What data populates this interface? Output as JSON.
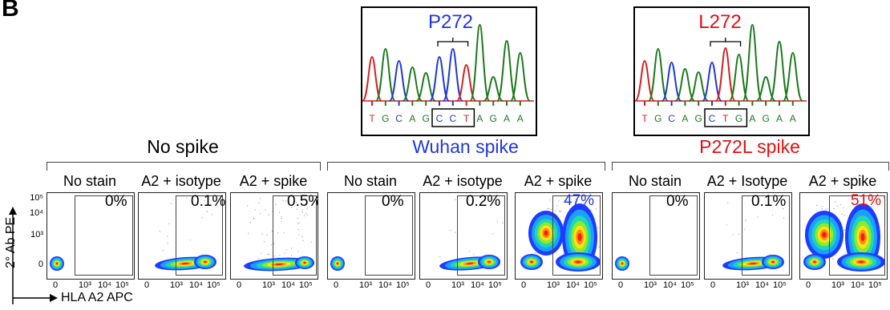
{
  "panel_letter": "B",
  "chromatograms": [
    {
      "label": "P272",
      "label_color": "#2036e0",
      "bases": [
        "T",
        "G",
        "C",
        "A",
        "G",
        "C",
        "C",
        "T",
        "A",
        "G",
        "A",
        "A"
      ]
    },
    {
      "label": "L272",
      "label_color": "#e01010",
      "bases": [
        "T",
        "G",
        "C",
        "A",
        "G",
        "C",
        "T",
        "G",
        "A",
        "G",
        "A",
        "A"
      ]
    }
  ],
  "base_colors": {
    "T": "#d42020",
    "G": "#1d7a1d",
    "C": "#2038d8",
    "A": "#1d7a1d"
  },
  "groups": [
    {
      "title": "No spike",
      "color": "#000000"
    },
    {
      "title": "Wuhan spike",
      "color": "#2036e0"
    },
    {
      "title": "P272L spike",
      "color": "#e01010"
    }
  ],
  "plots": [
    {
      "label": "No stain",
      "pct": "0%",
      "pct_color": "#000000"
    },
    {
      "label": "A2 + isotype",
      "pct": "0.1%",
      "pct_color": "#000000"
    },
    {
      "label": "A2 + spike",
      "pct": "0.5%",
      "pct_color": "#000000"
    },
    {
      "label": "No stain",
      "pct": "0%",
      "pct_color": "#000000"
    },
    {
      "label": "A2 + isotype",
      "pct": "0.2%",
      "pct_color": "#000000"
    },
    {
      "label": "A2 + spike",
      "pct": "47%",
      "pct_color": "#2036e0"
    },
    {
      "label": "No stain",
      "pct": "0%",
      "pct_color": "#000000"
    },
    {
      "label": "A2 + Isotype",
      "pct": "0.1%",
      "pct_color": "#000000"
    },
    {
      "label": "A2 + spike",
      "pct": "51%",
      "pct_color": "#e01010"
    }
  ],
  "y_ticks": [
    "10⁵",
    "10⁴",
    "10³",
    "0"
  ],
  "x_ticks": [
    "0",
    "10³",
    "10⁴",
    "10⁵"
  ],
  "y_axis_label": "2° Ab PE",
  "x_axis_label": "HLA A2 APC"
}
